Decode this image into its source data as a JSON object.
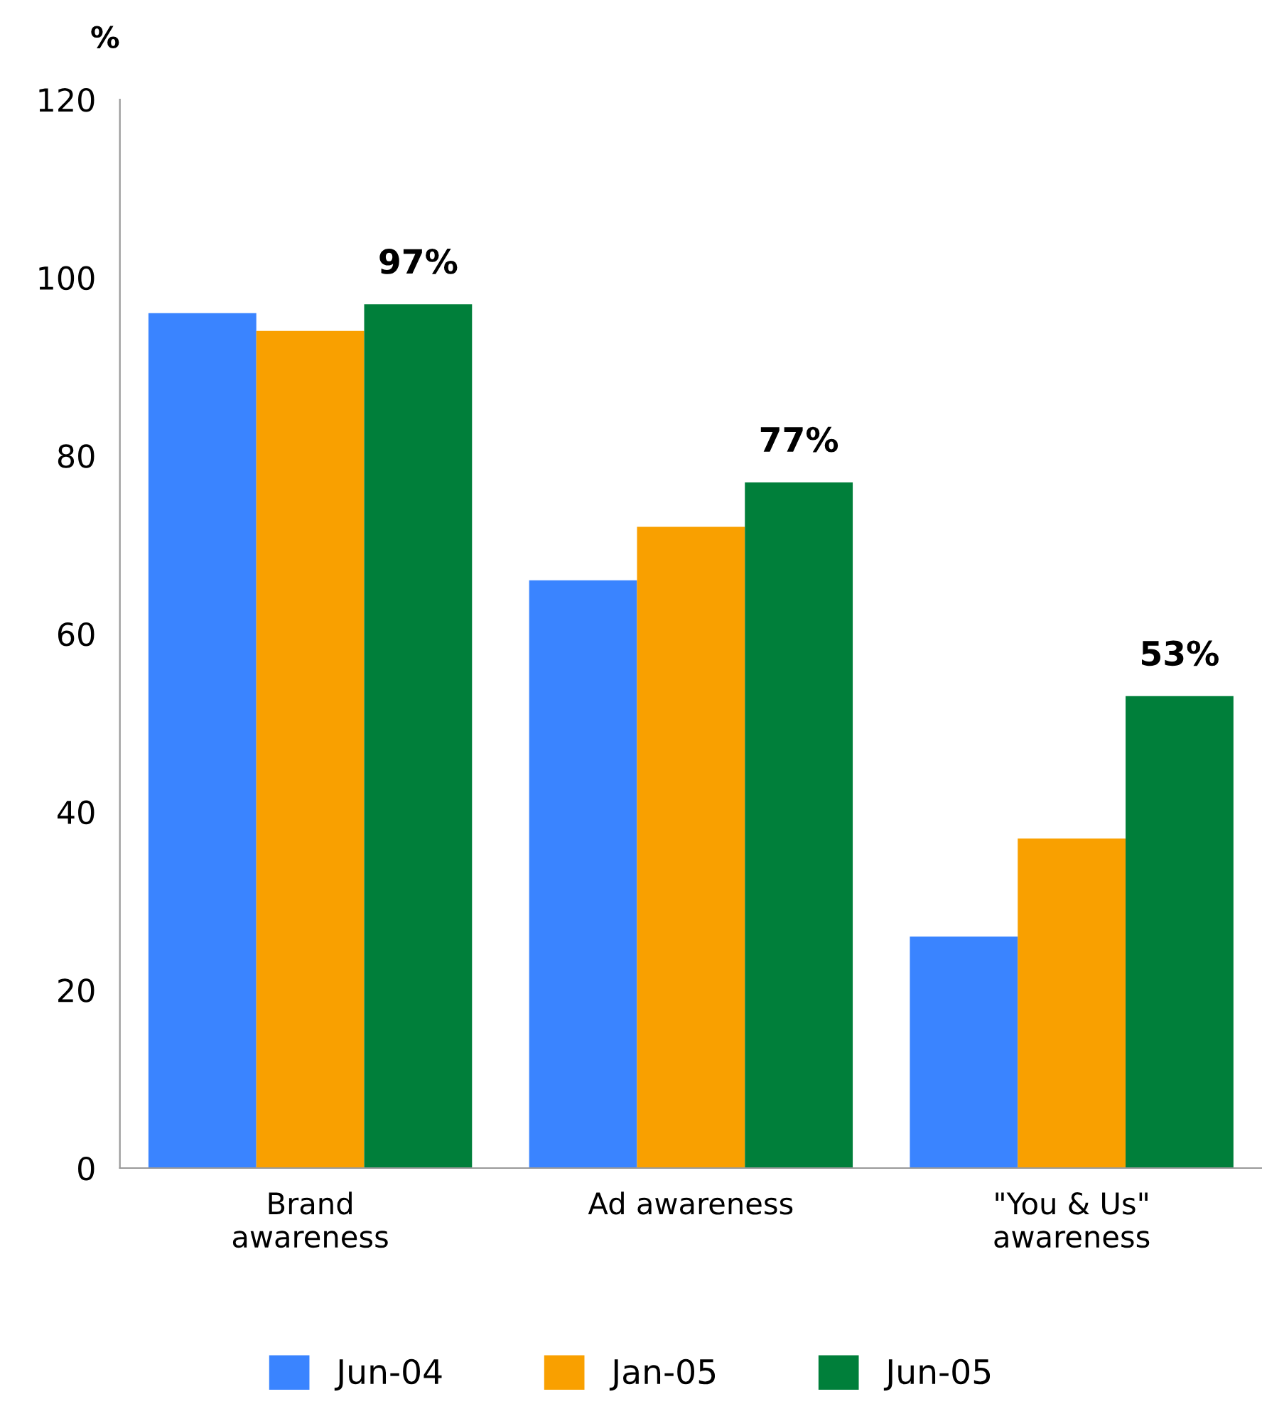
{
  "chart_data": {
    "type": "bar",
    "ylabel": "%",
    "categories": [
      "Brand\nawareness",
      "Ad awareness",
      "\"You & Us\"\nawareness"
    ],
    "series": [
      {
        "name": "Jun-04",
        "color": "#3a84ff",
        "values": [
          96,
          66,
          26
        ]
      },
      {
        "name": "Jan-05",
        "color": "#f9a000",
        "values": [
          94,
          72,
          37
        ]
      },
      {
        "name": "Jun-05",
        "color": "#007f3a",
        "values": [
          97,
          77,
          53
        ],
        "value_labels": [
          "97%",
          "77%",
          "53%"
        ]
      }
    ],
    "ylim": [
      0,
      120
    ],
    "yticks": [
      0,
      20,
      40,
      60,
      80,
      100,
      120
    ],
    "grid": false,
    "legend": "bottom"
  }
}
